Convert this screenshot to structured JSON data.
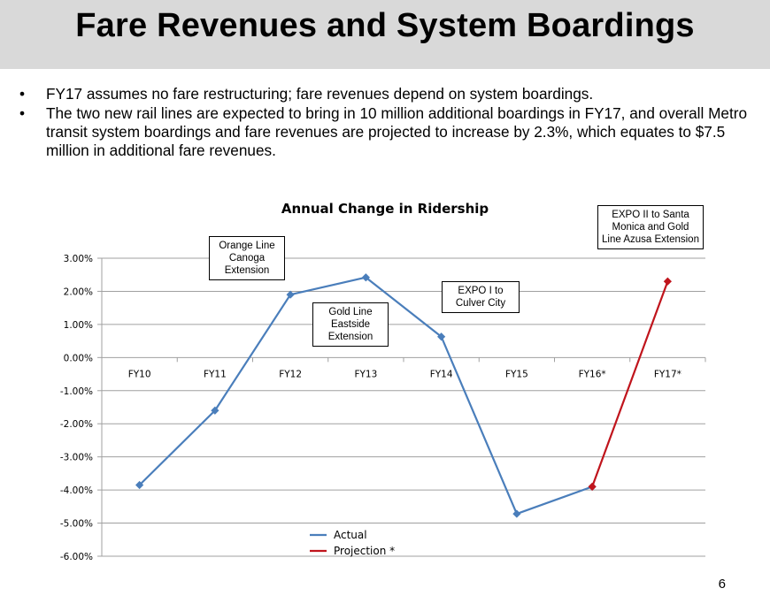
{
  "header": {
    "title": "Fare Revenues and System Boardings"
  },
  "bullets": [
    {
      "marker": "•",
      "text": "FY17 assumes no fare restructuring; fare revenues depend on system boardings."
    },
    {
      "marker": "•",
      "text": "The two new rail lines are expected to bring in 10 million additional boardings in FY17, and overall Metro transit system boardings and fare revenues are projected to increase by 2.3%, which equates to $7.5 million in additional fare revenues."
    }
  ],
  "annotations": {
    "orange_line": "Orange Line Canoga Extension",
    "gold_eastside": "Gold Line Eastside Extension",
    "expo1": "EXPO I to Culver City",
    "expo2": "EXPO II to Santa Monica and Gold Line Azusa Extension"
  },
  "page_number": "6",
  "colors": {
    "actual": "#4a7ebb",
    "projection": "#c0141c",
    "grid": "#a0a0a0",
    "title_bar": "#d9d9d9"
  },
  "chart_data": {
    "type": "line",
    "title": "Annual Change in Ridership",
    "categories": [
      "FY10",
      "FY11",
      "FY12",
      "FY13",
      "FY14",
      "FY15",
      "FY16*",
      "FY17*"
    ],
    "y_ticks": [
      "3.00%",
      "2.00%",
      "1.00%",
      "0.00%",
      "-1.00%",
      "-2.00%",
      "-3.00%",
      "-4.00%",
      "-5.00%",
      "-6.00%"
    ],
    "ylim": [
      -6,
      3
    ],
    "series": [
      {
        "name": "Actual",
        "color": "#4a7ebb",
        "values": [
          -3.85,
          -1.6,
          1.9,
          2.42,
          0.63,
          -4.72,
          -3.9,
          null
        ]
      },
      {
        "name": "Projection *",
        "color": "#c0141c",
        "values": [
          null,
          null,
          null,
          null,
          null,
          null,
          -3.9,
          2.3
        ]
      }
    ],
    "legend_position": "bottom-center"
  }
}
